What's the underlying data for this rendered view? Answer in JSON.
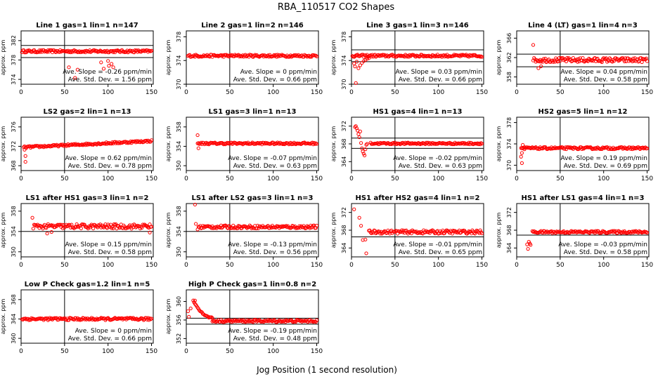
{
  "figure": {
    "title": "RBA_110517  CO2 Shapes",
    "xlabel": "Jog Position (1 second resolution)"
  },
  "colors": {
    "points": "#ff0000",
    "axes": "#000000",
    "background": "#ffffff"
  },
  "chart_data": [
    {
      "type": "scatter",
      "title": "Line 1 gas=1 lin=1 n=147",
      "ylabel": "approx. ppm",
      "xlim": [
        0,
        152
      ],
      "ylim": [
        373,
        384
      ],
      "xticks": [
        0,
        50,
        100,
        150
      ],
      "yticks": [
        374,
        378,
        382
      ],
      "vline": 50,
      "hlines": [
        378.5,
        381
      ],
      "slope_text": "Ave. Slope = -0.26 ppm/min",
      "sd_text": "Ave. Std. Dev. = 1.56 ppm",
      "series": [
        {
          "x_start": 1,
          "x_end": 150,
          "baseline": 379.8,
          "noise": 0.25,
          "extra": [
            [
              55,
              376.5
            ],
            [
              62,
              374.3
            ],
            [
              65,
              376
            ],
            [
              92,
              377.5
            ],
            [
              95,
              376.2
            ],
            [
              100,
              377.8
            ],
            [
              101,
              376.8
            ],
            [
              104,
              377.2
            ],
            [
              106,
              376.5
            ]
          ]
        }
      ]
    },
    {
      "type": "scatter",
      "title": "Line 2 gas=1 lin=2 n=146",
      "ylabel": "approx. ppm",
      "xlim": [
        0,
        152
      ],
      "ylim": [
        370,
        379
      ],
      "xticks": [
        0,
        50,
        100,
        150
      ],
      "yticks": [
        370,
        374,
        378
      ],
      "vline": 50,
      "hlines": [],
      "slope_text": "Ave. Slope = 0 ppm/min",
      "sd_text": "Ave. Std. Dev. = 0.66 ppm",
      "series": [
        {
          "x_start": 2,
          "x_end": 150,
          "baseline": 374.8,
          "noise": 0.2,
          "extra": []
        }
      ]
    },
    {
      "type": "scatter",
      "title": "Line 3 gas=1 lin=3 n=146",
      "ylabel": "approx. ppm",
      "xlim": [
        0,
        152
      ],
      "ylim": [
        370,
        379
      ],
      "xticks": [
        0,
        50,
        100,
        150
      ],
      "yticks": [
        370,
        374,
        378
      ],
      "vline": 50,
      "hlines": [
        375.8,
        373.8
      ],
      "slope_text": "Ave. Slope = 0.03 ppm/min",
      "sd_text": "Ave. Std. Dev. = 0.66 ppm",
      "series": [
        {
          "x_start": 1,
          "x_end": 150,
          "baseline": 374.8,
          "noise": 0.2,
          "extra": [
            [
              3,
              373.5
            ],
            [
              4,
              373.0
            ],
            [
              5,
              370.2
            ],
            [
              6,
              373.8
            ],
            [
              8,
              372.7
            ],
            [
              10,
              373.2
            ],
            [
              12,
              373.6
            ],
            [
              14,
              373.9
            ],
            [
              16,
              374.1
            ],
            [
              18,
              374.3
            ],
            [
              20,
              374.4
            ]
          ]
        }
      ]
    },
    {
      "type": "scatter",
      "title": "Line 4 (LT) gas=1 lin=4 n=3",
      "ylabel": "approx. ppm",
      "xlim": [
        0,
        152
      ],
      "ylim": [
        356.5,
        367.5
      ],
      "xticks": [
        0,
        50,
        100,
        150
      ],
      "yticks": [
        358,
        362,
        366
      ],
      "vline": 50,
      "hlines": [
        362.7,
        360.1
      ],
      "slope_text": "Ave. Slope = 0.04 ppm/min",
      "sd_text": "Ave. Std. Dev. = 0.58 ppm",
      "series": [
        {
          "x_start": 19,
          "x_end": 150,
          "baseline": 361.5,
          "noise": 0.45,
          "extra": [
            [
              19,
              364.6
            ],
            [
              25,
              359.8
            ],
            [
              28,
              360.2
            ]
          ]
        }
      ]
    },
    {
      "type": "scatter",
      "title": "LS2 gas=2 lin=1 n=13",
      "ylabel": "approx. ppm",
      "xlim": [
        0,
        152
      ],
      "ylim": [
        367,
        378
      ],
      "xticks": [
        0,
        50,
        100,
        150
      ],
      "yticks": [
        368,
        372,
        376
      ],
      "vline": 50,
      "hlines": [],
      "slope_text": "Ave. Slope = 0.62 ppm/min",
      "sd_text": "Ave. Std. Dev. = 0.78 ppm",
      "series": [
        {
          "x_start": 3,
          "x_end": 150,
          "baseline": 371.8,
          "noise": 0.2,
          "slope_total": 1.3,
          "extra": [
            [
              5,
              370.0
            ],
            [
              5,
              368.8
            ],
            [
              4,
              371.3
            ]
          ]
        }
      ]
    },
    {
      "type": "scatter",
      "title": "LS1 gas=3 lin=1 n=13",
      "ylabel": "approx. ppm",
      "xlim": [
        0,
        152
      ],
      "ylim": [
        349,
        360
      ],
      "xticks": [
        0,
        50,
        100,
        150
      ],
      "yticks": [
        350,
        354,
        358
      ],
      "vline": 50,
      "hlines": [],
      "slope_text": "Ave. Slope = -0.07 ppm/min",
      "sd_text": "Ave. Std. Dev. = 0.63 ppm",
      "series": [
        {
          "x_start": 13,
          "x_end": 150,
          "baseline": 354.6,
          "noise": 0.2,
          "extra": [
            [
              13,
              356.3
            ],
            [
              14,
              353.6
            ]
          ]
        }
      ]
    },
    {
      "type": "scatter",
      "title": "HS1 gas=4 lin=1 n=13",
      "ylabel": "approx. ppm",
      "xlim": [
        0,
        152
      ],
      "ylim": [
        362,
        374
      ],
      "xticks": [
        0,
        50,
        100,
        150
      ],
      "yticks": [
        364,
        368,
        372
      ],
      "vline": 50,
      "hlines": [
        369.3,
        367.0
      ],
      "slope_text": "Ave. Slope = -0.02 ppm/min",
      "sd_text": "Ave. Std. Dev. = 0.63 ppm",
      "series": [
        {
          "x_start": 22,
          "x_end": 150,
          "baseline": 368.1,
          "noise": 0.2,
          "extra": [
            [
              4,
              371.8
            ],
            [
              5,
              372.0
            ],
            [
              6,
              371.5
            ],
            [
              7,
              371.0
            ],
            [
              8,
              370.2
            ],
            [
              9,
              369.5
            ],
            [
              10,
              370.8
            ],
            [
              11,
              368.2
            ],
            [
              12,
              367.0
            ],
            [
              13,
              366.3
            ],
            [
              14,
              365.8
            ],
            [
              15,
              365.4
            ],
            [
              16,
              366.8
            ],
            [
              17,
              367.8
            ],
            [
              18,
              368.0
            ]
          ]
        }
      ]
    },
    {
      "type": "scatter",
      "title": "HS2 gas=5 lin=1 n=12",
      "ylabel": "approx. ppm",
      "xlim": [
        0,
        152
      ],
      "ylim": [
        369,
        379
      ],
      "xticks": [
        0,
        50,
        100,
        150
      ],
      "yticks": [
        370,
        374,
        378
      ],
      "vline": 50,
      "hlines": [],
      "slope_text": "Ave. Slope = 0.19 ppm/min",
      "sd_text": "Ave. Std. Dev. = 0.69 ppm",
      "series": [
        {
          "x_start": 5,
          "x_end": 150,
          "baseline": 373.2,
          "noise": 0.2,
          "extra": [
            [
              5,
              371.6
            ],
            [
              6,
              372.3
            ],
            [
              6,
              370.4
            ],
            [
              7,
              373.8
            ],
            [
              9,
              373.0
            ]
          ]
        }
      ]
    },
    {
      "type": "scatter",
      "title": "LS1 after HS1 gas=3 lin=1 n=2",
      "ylabel": "approx. ppm",
      "xlim": [
        0,
        152
      ],
      "ylim": [
        349,
        359.5
      ],
      "xticks": [
        0,
        50,
        100,
        150
      ],
      "yticks": [
        350,
        354,
        358
      ],
      "vline": 50,
      "hlines": [
        354.0
      ],
      "slope_text": "Ave. Slope = 0.15 ppm/min",
      "sd_text": "Ave. Std. Dev. = 0.58 ppm",
      "series": [
        {
          "x_start": 14,
          "x_end": 150,
          "baseline": 355.0,
          "noise": 0.45,
          "extra": [
            [
              13,
              356.7
            ],
            [
              30,
              353.6
            ],
            [
              35,
              353.9
            ],
            [
              148,
              353.8
            ]
          ]
        }
      ]
    },
    {
      "type": "scatter",
      "title": "LS1 after LS2 gas=3 lin=1 n=3",
      "ylabel": "approx. ppm",
      "xlim": [
        0,
        152
      ],
      "ylim": [
        349,
        359.5
      ],
      "xticks": [
        0,
        50,
        100,
        150
      ],
      "yticks": [
        350,
        354,
        358
      ],
      "vline": 50,
      "hlines": [
        354.0
      ],
      "slope_text": "Ave. Slope = -0.13 ppm/min",
      "sd_text": "Ave. Std. Dev. = 0.56 ppm",
      "series": [
        {
          "x_start": 14,
          "x_end": 150,
          "baseline": 354.9,
          "noise": 0.3,
          "extra": [
            [
              10,
              359.3
            ],
            [
              11,
              355.5
            ],
            [
              13,
              354.4
            ]
          ]
        }
      ]
    },
    {
      "type": "scatter",
      "title": "HS1 after HS2 gas=4 lin=1 n=2",
      "ylabel": "approx. ppm",
      "xlim": [
        0,
        152
      ],
      "ylim": [
        362,
        374
      ],
      "xticks": [
        0,
        50,
        100,
        150
      ],
      "yticks": [
        364,
        368,
        372
      ],
      "vline": 50,
      "hlines": [
        366.5
      ],
      "slope_text": "Ave. Slope = -0.01 ppm/min",
      "sd_text": "Ave. Std. Dev. = 0.65 ppm",
      "series": [
        {
          "x_start": 20,
          "x_end": 150,
          "baseline": 367.6,
          "noise": 0.4,
          "extra": [
            [
              3,
              372.7
            ],
            [
              9,
              370.8
            ],
            [
              11,
              369.0
            ],
            [
              13,
              365.8
            ],
            [
              16,
              365.9
            ],
            [
              17,
              362.8
            ]
          ]
        }
      ]
    },
    {
      "type": "scatter",
      "title": "HS1 after LS1 gas=4 lin=1 n=3",
      "ylabel": "approx. ppm",
      "xlim": [
        0,
        152
      ],
      "ylim": [
        362,
        374
      ],
      "xticks": [
        0,
        50,
        100,
        150
      ],
      "yticks": [
        364,
        368,
        372
      ],
      "vline": 50,
      "hlines": [
        366.9
      ],
      "slope_text": "Ave. Slope = -0.03 ppm/min",
      "sd_text": "Ave. Std. Dev. = 0.58 ppm",
      "series": [
        {
          "x_start": 18,
          "x_end": 150,
          "baseline": 367.6,
          "noise": 0.25,
          "extra": [
            [
              12,
              364.8
            ],
            [
              13,
              363.8
            ],
            [
              14,
              365.4
            ],
            [
              15,
              365.0
            ],
            [
              16,
              364.7
            ]
          ]
        }
      ]
    },
    {
      "type": "scatter",
      "title": "Low P Check gas=1.2 lin=1 n=5",
      "ylabel": "approx. ppm",
      "xlim": [
        0,
        152
      ],
      "ylim": [
        359,
        370
      ],
      "xticks": [
        0,
        50,
        100,
        150
      ],
      "yticks": [
        360,
        364,
        368
      ],
      "vline": 50,
      "hlines": [],
      "slope_text": "Ave. Slope = 0 ppm/min",
      "sd_text": "Ave. Std. Dev. = 0.66 ppm",
      "series": [
        {
          "x_start": 1,
          "x_end": 150,
          "baseline": 364.0,
          "noise": 0.25,
          "extra": []
        }
      ]
    },
    {
      "type": "scatter",
      "title": "High P Check gas=1 lin=0.8 n=2",
      "ylabel": "approx. ppm",
      "xlim": [
        0,
        152
      ],
      "ylim": [
        351,
        362.5
      ],
      "xticks": [
        0,
        50,
        100,
        150
      ],
      "yticks": [
        352,
        356,
        360
      ],
      "vline": 50,
      "hlines": [
        356.4,
        355.1
      ],
      "slope_text": "Ave. Slope = -0.19 ppm/min",
      "sd_text": "Ave. Std. Dev. = 0.48 ppm",
      "series": [
        {
          "x_start": 30,
          "x_end": 150,
          "baseline": 355.8,
          "noise": 0.25,
          "decay": {
            "x_from": 8,
            "x_to": 30,
            "start": 360.2,
            "end": 356.5
          },
          "extra": [
            [
              2,
              357.9
            ],
            [
              3,
              356.7
            ],
            [
              5,
              358.5
            ],
            [
              9,
              359.8
            ],
            [
              10,
              360.2
            ]
          ]
        }
      ]
    }
  ]
}
